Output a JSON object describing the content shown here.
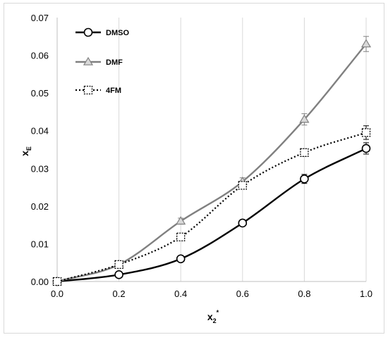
{
  "chart_data": {
    "type": "line",
    "xlabel": "x",
    "xlabel_sub": "2",
    "xlabel_sup": "*",
    "ylabel": "x",
    "ylabel_sub": "E",
    "xlim": [
      0,
      1.0
    ],
    "ylim": [
      0,
      0.07
    ],
    "x_ticks": [
      "0.0",
      "0.2",
      "0.4",
      "0.6",
      "0.8",
      "1.0"
    ],
    "y_ticks": [
      "0.00",
      "0.01",
      "0.02",
      "0.03",
      "0.04",
      "0.05",
      "0.06",
      "0.07"
    ],
    "grid": "vertical gridlines",
    "legend_position": "top-left",
    "x": [
      0.0,
      0.2,
      0.4,
      0.6,
      0.8,
      1.0
    ],
    "series": [
      {
        "name": "DMSO",
        "values": [
          0.0,
          0.0018,
          0.006,
          0.0155,
          0.0272,
          0.0353
        ],
        "errors": [
          0.0,
          0.0003,
          0.0004,
          0.0005,
          0.0012,
          0.0015
        ],
        "marker": "circle",
        "line_style": "solid",
        "color": "#000000"
      },
      {
        "name": "DMF",
        "values": [
          0.0,
          0.0045,
          0.016,
          0.0265,
          0.043,
          0.063
        ],
        "errors": [
          0.0,
          0.0004,
          0.0008,
          0.001,
          0.0015,
          0.002
        ],
        "marker": "triangle",
        "line_style": "solid",
        "color": "#808080"
      },
      {
        "name": "4FM",
        "values": [
          0.0,
          0.0045,
          0.0118,
          0.0255,
          0.0342,
          0.0395
        ],
        "errors": [
          0.0,
          0.0003,
          0.0008,
          0.0008,
          0.001,
          0.0018
        ],
        "marker": "square",
        "line_style": "dotted",
        "color": "#000000"
      }
    ]
  }
}
